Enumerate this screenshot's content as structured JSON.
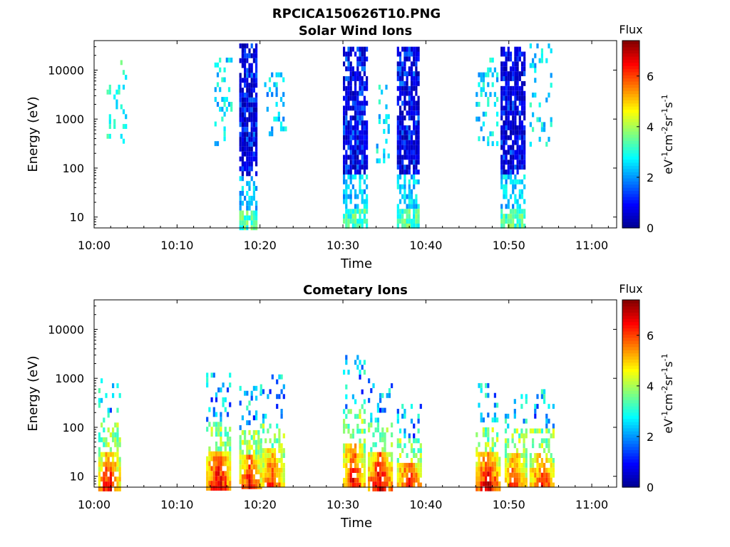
{
  "title": "RPCICA150626T10.PNG",
  "colormap": [
    "#00008f",
    "#0000ff",
    "#0080ff",
    "#00ffff",
    "#80ff80",
    "#ffff00",
    "#ff8000",
    "#ff0000",
    "#800000"
  ],
  "chart_data": [
    {
      "type": "heatmap",
      "title": "Solar Wind Ions",
      "xlabel": "Time",
      "ylabel": "Energy (eV)",
      "yscale": "log",
      "ylim": [
        6,
        40000
      ],
      "xlim": [
        "10:00",
        "11:03"
      ],
      "x_ticks": [
        "10:00",
        "10:10",
        "10:20",
        "10:30",
        "10:40",
        "10:50",
        "11:00"
      ],
      "y_ticks": [
        "10",
        "100",
        "1000",
        "10000"
      ],
      "colorbar": {
        "label": "Flux",
        "unit": "eV-1cm-2sr-1s-1",
        "range": [
          0,
          7.4
        ],
        "ticks": [
          "0",
          "2",
          "4",
          "6"
        ]
      },
      "bursts": [
        {
          "t0": "10:01.5",
          "t1": "10:03.8",
          "emin": 300,
          "emax": 16000,
          "level": 3.0
        },
        {
          "t0": "10:14.5",
          "t1": "10:16.5",
          "emin": 300,
          "emax": 18000,
          "level": 2.6
        },
        {
          "t0": "10:17.5",
          "t1": "10:19.5",
          "emin": 6,
          "emax": 35000,
          "level": 1.0
        },
        {
          "t0": "10:20.5",
          "t1": "10:23.0",
          "emin": 500,
          "emax": 9000,
          "level": 2.4
        },
        {
          "t0": "10:30.0",
          "t1": "10:33.0",
          "emin": 6,
          "emax": 30000,
          "level": 1.0
        },
        {
          "t0": "10:34.0",
          "t1": "10:35.5",
          "emin": 150,
          "emax": 8000,
          "level": 2.6
        },
        {
          "t0": "10:36.5",
          "t1": "10:39.0",
          "emin": 6,
          "emax": 30000,
          "level": 1.0
        },
        {
          "t0": "10:46.0",
          "t1": "10:48.5",
          "emin": 300,
          "emax": 18000,
          "level": 2.6
        },
        {
          "t0": "10:49.0",
          "t1": "10:52.0",
          "emin": 6,
          "emax": 30000,
          "level": 1.0
        },
        {
          "t0": "10:52.5",
          "t1": "10:55.0",
          "emin": 300,
          "emax": 35000,
          "level": 2.6
        }
      ]
    },
    {
      "type": "heatmap",
      "title": "Cometary Ions",
      "xlabel": "Time",
      "ylabel": "Energy (eV)",
      "yscale": "log",
      "ylim": [
        6,
        40000
      ],
      "xlim": [
        "10:00",
        "11:03"
      ],
      "x_ticks": [
        "10:00",
        "10:10",
        "10:20",
        "10:30",
        "10:40",
        "10:50",
        "11:00"
      ],
      "y_ticks": [
        "10",
        "100",
        "1000",
        "10000"
      ],
      "colorbar": {
        "label": "Flux",
        "unit": "eV-1cm-2sr-1s-1",
        "range": [
          0,
          7.4
        ],
        "ticks": [
          "0",
          "2",
          "4",
          "6"
        ]
      },
      "bursts": [
        {
          "t0": "10:00.5",
          "t1": "10:03.0",
          "emin": 6,
          "emax": 1000,
          "level": 6.8
        },
        {
          "t0": "10:13.5",
          "t1": "10:16.5",
          "emin": 6,
          "emax": 1300,
          "level": 7.0
        },
        {
          "t0": "10:17.5",
          "t1": "10:20.0",
          "emin": 6,
          "emax": 700,
          "level": 6.8
        },
        {
          "t0": "10:20.0",
          "t1": "10:23.0",
          "emin": 6,
          "emax": 1200,
          "level": 6.4
        },
        {
          "t0": "10:30.0",
          "t1": "10:32.5",
          "emin": 6,
          "emax": 3000,
          "level": 6.8
        },
        {
          "t0": "10:33.0",
          "t1": "10:36.0",
          "emin": 6,
          "emax": 1000,
          "level": 7.0
        },
        {
          "t0": "10:36.5",
          "t1": "10:39.5",
          "emin": 6,
          "emax": 300,
          "level": 6.8
        },
        {
          "t0": "10:46.0",
          "t1": "10:49.0",
          "emin": 6,
          "emax": 800,
          "level": 7.0
        },
        {
          "t0": "10:49.5",
          "t1": "10:52.0",
          "emin": 6,
          "emax": 600,
          "level": 6.6
        },
        {
          "t0": "10:52.5",
          "t1": "10:55.5",
          "emin": 6,
          "emax": 600,
          "level": 6.6
        }
      ]
    }
  ]
}
